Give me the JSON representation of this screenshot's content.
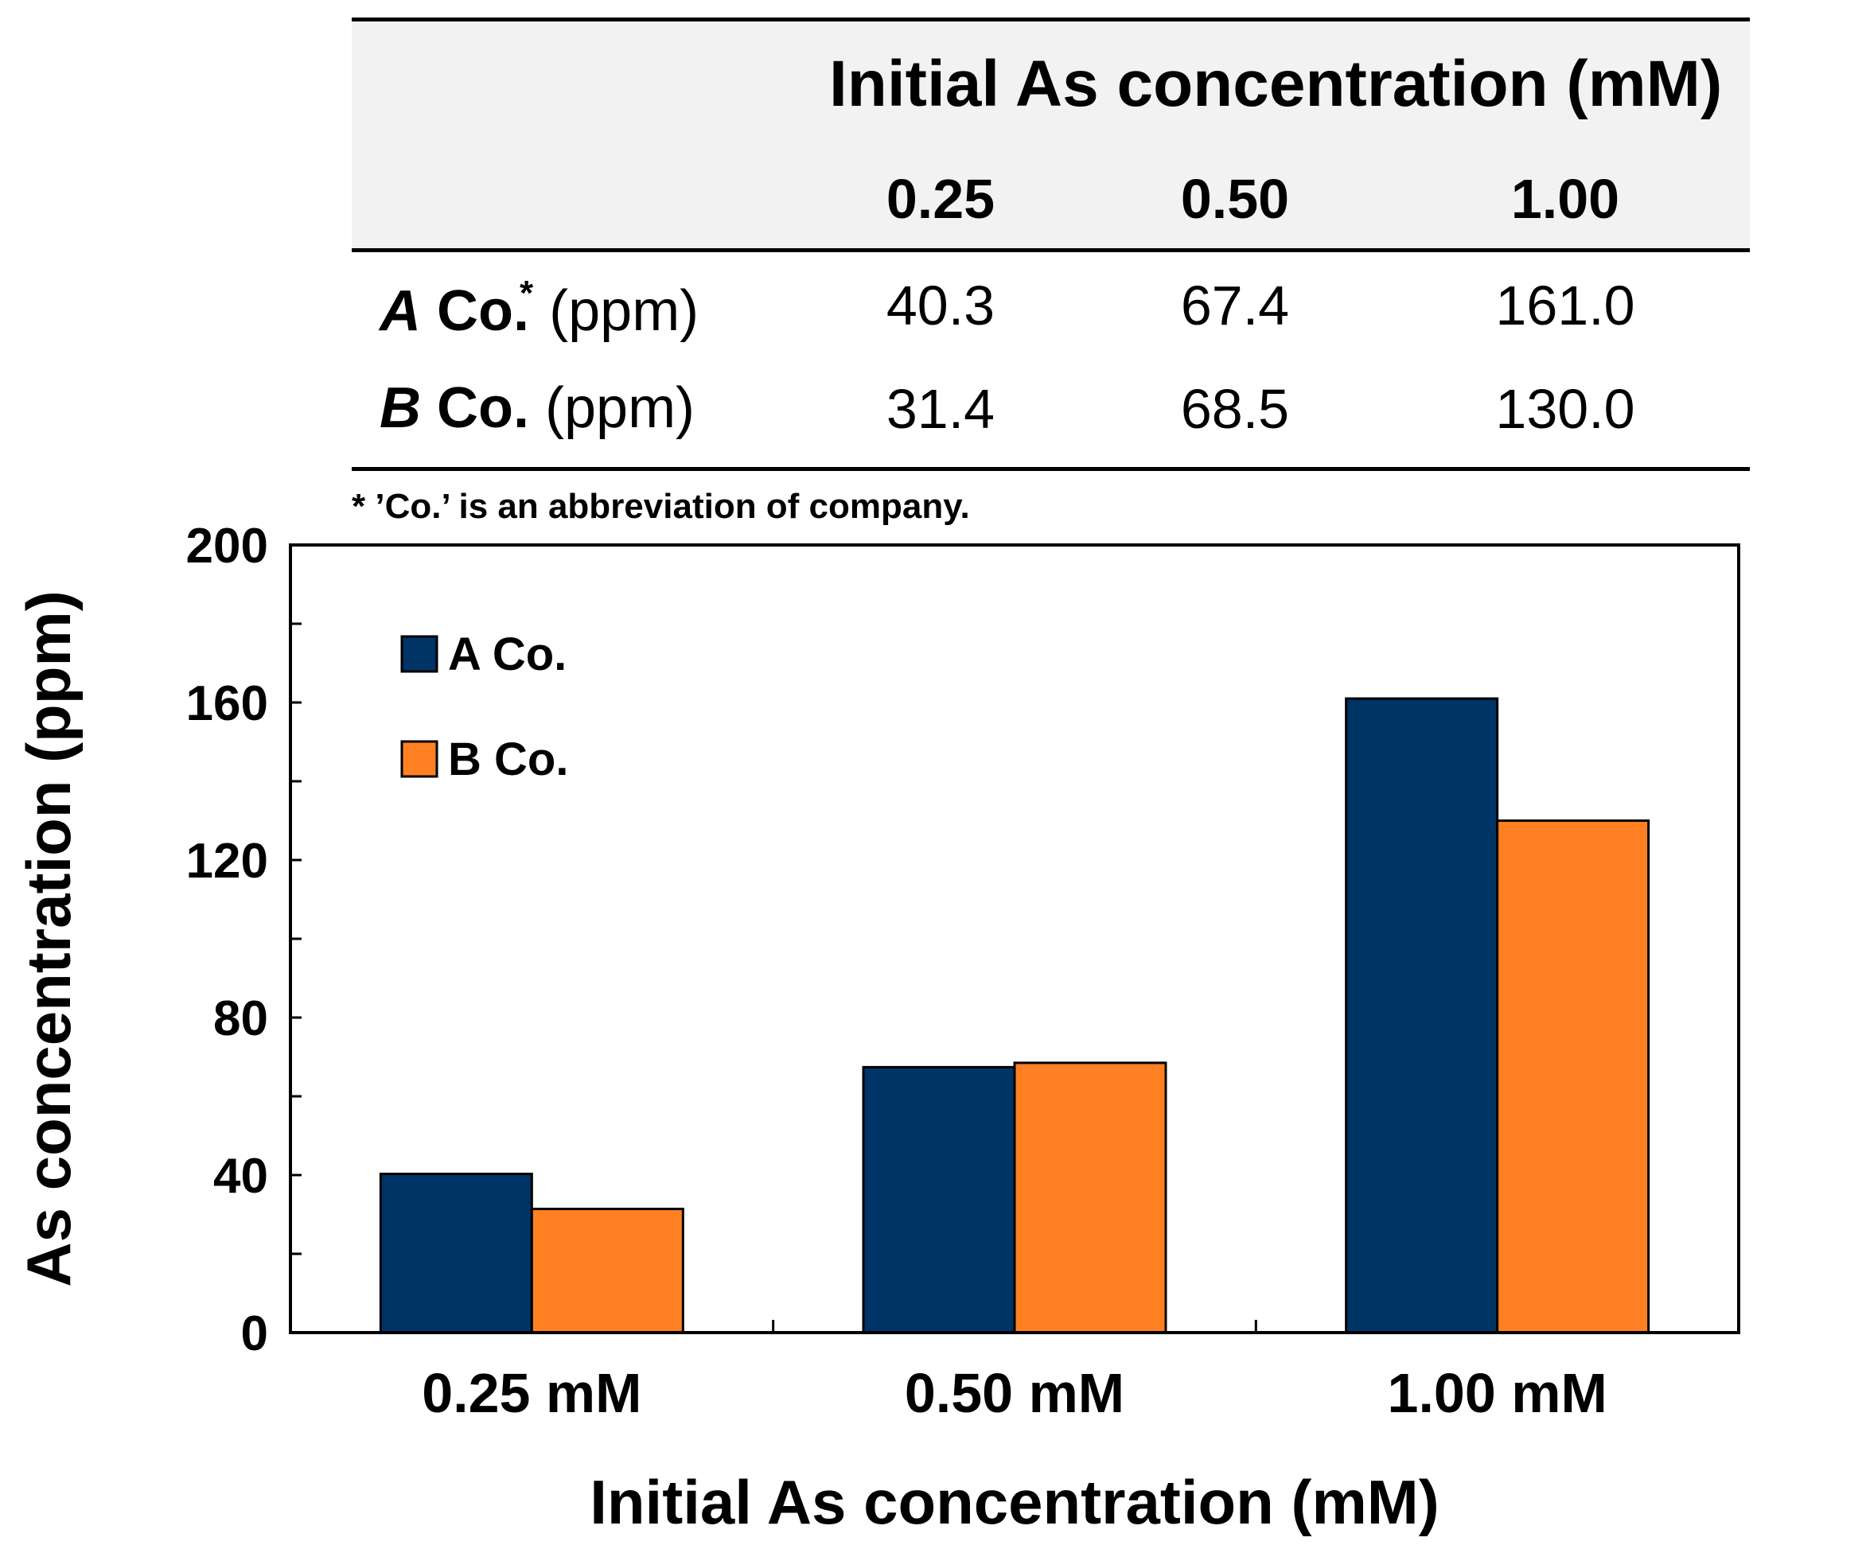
{
  "table": {
    "group_header": "Initial As concentration (mM)",
    "columns": [
      "0.25",
      "0.50",
      "1.00"
    ],
    "rows": [
      {
        "company": "A",
        "suffix": "Co.",
        "footnote_mark": "*",
        "unit": "(ppm)",
        "values": [
          "40.3",
          "67.4",
          "161.0"
        ]
      },
      {
        "company": "B",
        "suffix": "Co.",
        "footnote_mark": "",
        "unit": "(ppm)",
        "values": [
          "31.4",
          "68.5",
          "130.0"
        ]
      }
    ],
    "footnote": "* ’Co.’ is an abbreviation of company."
  },
  "colors": {
    "series_a": "#003366",
    "series_b": "#ff8022"
  },
  "chart_data": {
    "type": "bar",
    "categories": [
      "0.25  mM",
      "0.50  mM",
      "1.00  mM"
    ],
    "series": [
      {
        "name": "A Co.",
        "values": [
          40.3,
          67.4,
          161.0
        ]
      },
      {
        "name": "B Co.",
        "values": [
          31.4,
          68.5,
          130.0
        ]
      }
    ],
    "title": "",
    "xlabel": "Initial As concentration (mM)",
    "ylabel": "As concentration (ppm)",
    "ylim": [
      0,
      200
    ],
    "yticks": [
      0,
      40,
      80,
      120,
      160,
      200
    ],
    "legend_position": "top-left",
    "grid": false
  }
}
